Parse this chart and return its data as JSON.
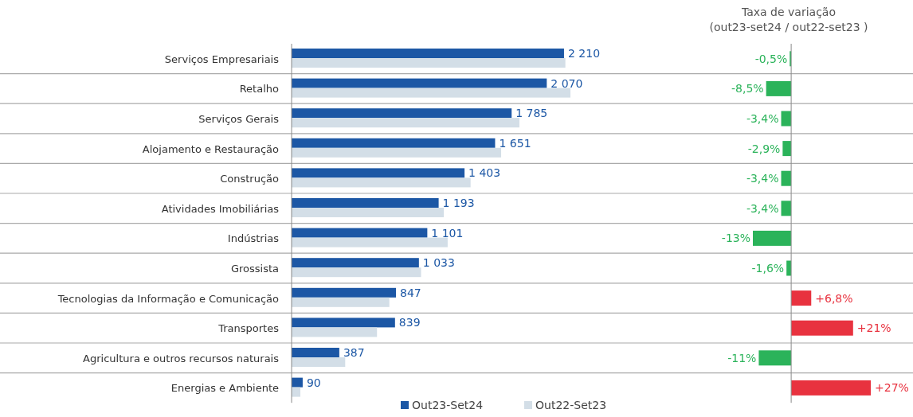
{
  "chart_data": [
    {
      "type": "bar",
      "orientation": "horizontal",
      "categories": [
        "Serviços Empresariais",
        "Retalho",
        "Serviços Gerais",
        "Alojamento e Restauração",
        "Construção",
        "Atividades Imobiliárias",
        "Indústrias",
        "Grossista",
        "Tecnologias da Informação e Comunicação",
        "Transportes",
        "Agricultura e outros recursos naturais",
        "Energias e Ambiente"
      ],
      "series": [
        {
          "name": "Out23-Set24",
          "color": "#1c57a5",
          "values": [
            2210,
            2070,
            1785,
            1651,
            1403,
            1193,
            1101,
            1033,
            847,
            839,
            387,
            90
          ],
          "value_labels": [
            "2 210",
            "2 070",
            "1 785",
            "1 651",
            "1 403",
            "1 193",
            "1 101",
            "1 033",
            "847",
            "839",
            "387",
            "90"
          ]
        },
        {
          "name": "Out22-Set23",
          "color": "#d3dee7",
          "values": [
            2221,
            2262,
            1848,
            1700,
            1452,
            1235,
            1266,
            1050,
            793,
            693,
            435,
            71
          ]
        }
      ],
      "legend": "bottom"
    },
    {
      "type": "bar",
      "orientation": "horizontal",
      "title": "Taxa de variação\n(out23-set24 / out22-set23 )",
      "categories": [
        null,
        null,
        null,
        null,
        null,
        null,
        null,
        null,
        null,
        null,
        null,
        null
      ],
      "values": [
        -0.5,
        -8.5,
        -3.4,
        -2.9,
        -3.4,
        -3.4,
        -13,
        -1.6,
        6.8,
        21,
        -11,
        27
      ],
      "colors": [
        "#2bb35a",
        "#2bb35a",
        "#2bb35a",
        "#2bb35a",
        "#2bb35a",
        "#2bb35a",
        "#2bb35a",
        "#2bb35a",
        "#e8323f",
        "#e8323f",
        "#2bb35a",
        "#e8323f"
      ],
      "value_labels": [
        "-0,5%",
        "-8,5%",
        "-3,4%",
        "-2,9%",
        "-3,4%",
        "-3,4%",
        "-13%",
        "-1,6%",
        "+6,8%",
        "+21%",
        "-11%",
        "+27%"
      ]
    }
  ]
}
